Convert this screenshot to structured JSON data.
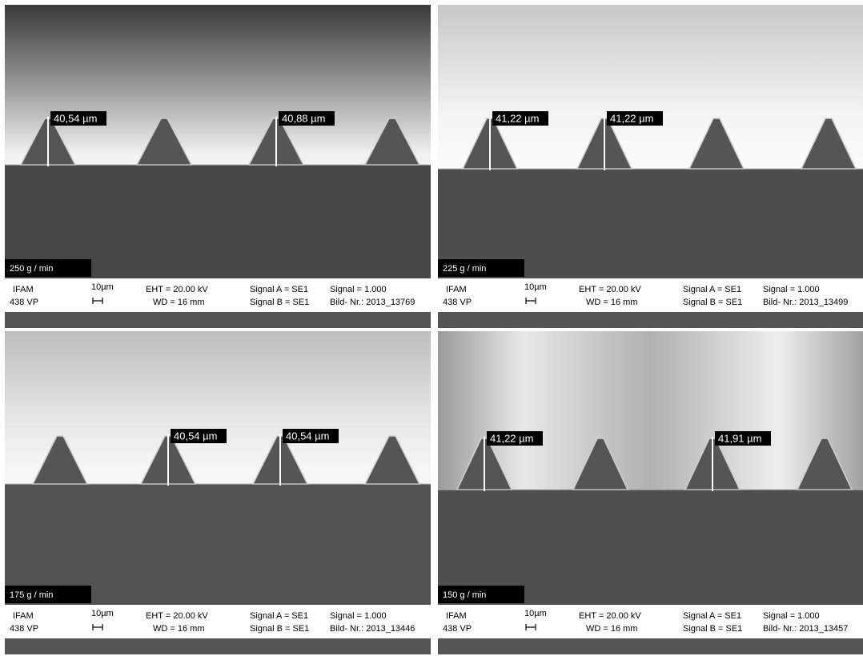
{
  "panels": [
    {
      "label": "250 g / min",
      "measurements": [
        "40,54 µm",
        "40,88 µm"
      ],
      "info": {
        "org": "IFAM",
        "model": "438 VP",
        "scale": "10µm",
        "eht": "EHT = 20.00 kV",
        "wd": "WD =  16 mm",
        "signal_a": "Signal A = SE1",
        "signal_b": "Signal B = SE1",
        "signal": "Signal = 1.000",
        "image_no": "Bild- Nr.: 2013_13769"
      }
    },
    {
      "label": "225 g / min",
      "measurements": [
        "41,22 µm",
        "41,22 µm"
      ],
      "info": {
        "org": "IFAM",
        "model": "438 VP",
        "scale": "10µm",
        "eht": "EHT = 20.00 kV",
        "wd": "WD =  16 mm",
        "signal_a": "Signal A = SE1",
        "signal_b": "Signal B = SE1",
        "signal": "Signal = 1.000",
        "image_no": "Bild- Nr.: 2013_13499"
      }
    },
    {
      "label": "175 g / min",
      "measurements": [
        "40,54 µm",
        "40,54 µm"
      ],
      "info": {
        "org": "IFAM",
        "model": "438 VP",
        "scale": "10µm",
        "eht": "EHT = 20.00 kV",
        "wd": "WD =  16 mm",
        "signal_a": "Signal A = SE1",
        "signal_b": "Signal B = SE1",
        "signal": "Signal = 1.000",
        "image_no": "Bild- Nr.: 2013_13446"
      }
    },
    {
      "label": "150 g / min",
      "measurements": [
        "41,22 µm",
        "41,91 µm"
      ],
      "info": {
        "org": "IFAM",
        "model": "438 VP",
        "scale": "10µm",
        "eht": "EHT = 20.00 kV",
        "wd": "WD =  16 mm",
        "signal_a": "Signal A = SE1",
        "signal_b": "Signal B = SE1",
        "signal": "Signal = 1.000",
        "image_no": "Bild- Nr.: 2013_13457"
      }
    }
  ]
}
